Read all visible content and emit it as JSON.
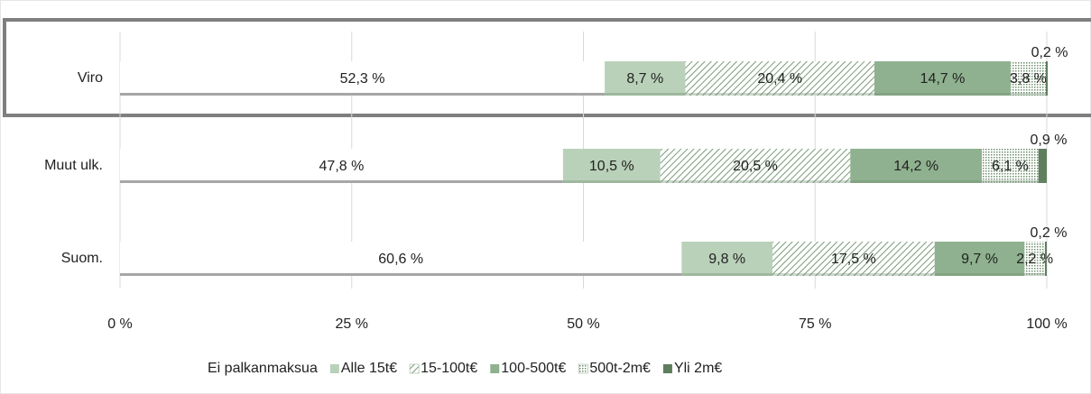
{
  "chart_data": {
    "type": "stacked_barh",
    "categories": [
      "Viro",
      "Muut ulk.",
      "Suom."
    ],
    "series": [
      {
        "name": "Ei palkanmaksua",
        "color": "#ffffff",
        "values": [
          52.3,
          47.8,
          60.6
        ],
        "value_labels": [
          "52,3 %",
          "47,8 %",
          "60,6 %"
        ]
      },
      {
        "name": "Alle 15t€",
        "color": "#b9d1b9",
        "values": [
          8.7,
          10.5,
          9.8
        ],
        "value_labels": [
          "8,7 %",
          "10,5 %",
          "9,8 %"
        ]
      },
      {
        "name": "15-100t€",
        "color": "#8aa88a",
        "pattern": "diagonal",
        "values": [
          20.4,
          20.5,
          17.5
        ],
        "value_labels": [
          "20,4 %",
          "20,5 %",
          "17,5 %"
        ]
      },
      {
        "name": "100-500t€",
        "color": "#8fb18f",
        "values": [
          14.7,
          14.2,
          9.7
        ],
        "value_labels": [
          "14,7 %",
          "14,2 %",
          "9,7 %"
        ]
      },
      {
        "name": "500t-2m€",
        "color": "#8aa88a",
        "pattern": "dots",
        "values": [
          3.8,
          6.1,
          2.2
        ],
        "value_labels": [
          "3,8 %",
          "6,1 %",
          "2,2 %"
        ]
      },
      {
        "name": "Yli 2m€",
        "color": "#5e7e5e",
        "values": [
          0.2,
          0.9,
          0.2
        ],
        "value_labels": [
          "0,2 %",
          "0,9 %",
          "0,2 %"
        ]
      }
    ],
    "xlim": [
      0,
      100
    ],
    "xticks": [
      {
        "value": 0,
        "label": "0 %"
      },
      {
        "value": 25,
        "label": "25 %"
      },
      {
        "value": 50,
        "label": "50 %"
      },
      {
        "value": 75,
        "label": "75 %"
      },
      {
        "value": 100,
        "label": "100 %"
      }
    ],
    "grid": true,
    "legend": "bottom"
  }
}
